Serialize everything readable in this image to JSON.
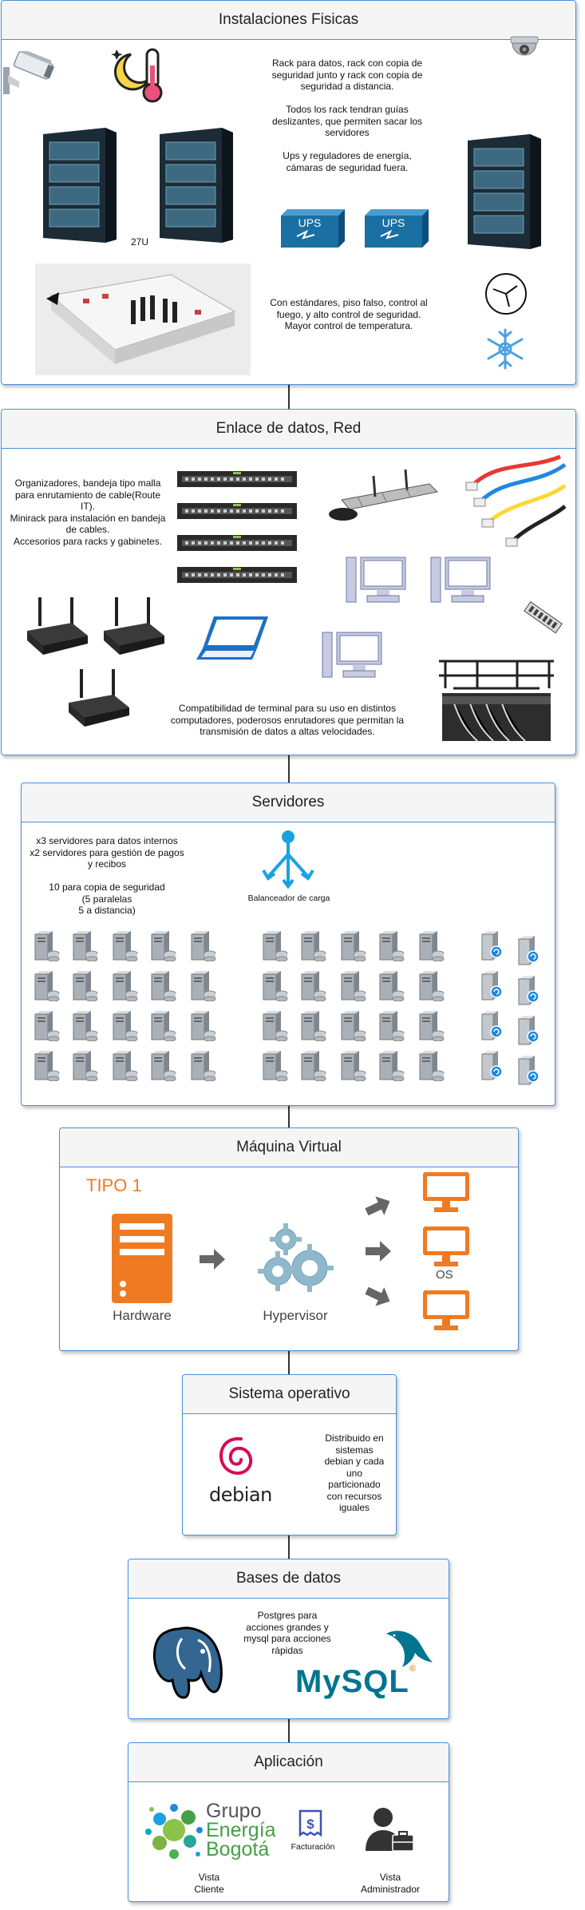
{
  "sections": {
    "instalaciones": {
      "title": "Instalaciones Fisicas",
      "text_racks": "Rack para datos, rack con copia de seguridad junto y rack con copia de seguridad a distancia.\n\nTodos los rack tendran guías deslizantes, que permiten sacar los servidores\n\nUps y reguladores de energía, cámaras de seguridad fuera.",
      "rack_label": "27U",
      "ups_label": "UPS",
      "text_control": "Con estándares, piso falso, control al fuego, y alto control de seguridad.\nMayor control de temperatura."
    },
    "enlace": {
      "title": "Enlace de datos, Red",
      "text_org": "Organizadores, bandeja tipo malla para enrutamiento de cable(Route IT).\nMinirack para instalación en bandeja de cables.\nAccesorios para racks y gabinetes.",
      "text_compat": "Compatibilidad de terminal para su uso en distintos computadores, poderosos enrutadores que permitan la transmisión de datos a altas velocidades."
    },
    "servidores": {
      "title": "Servidores",
      "text": "x3 servidores para datos internos\nx2 servidores para gestión de pagos y recibos\n\n10 para copia de seguridad\n(5 paralelas\n5 a distancia)",
      "balancer_label": "Balanceador de carga"
    },
    "maquina": {
      "title": "Máquina Virtual",
      "tipo": "TIPO 1",
      "hardware": "Hardware",
      "hypervisor": "Hypervisor",
      "os": "OS"
    },
    "sistema": {
      "title": "Sistema operativo",
      "logo_text": "debian",
      "text": "Distribuido en sistemas debian y cada uno particionado con recursos iguales"
    },
    "bases": {
      "title": "Bases de datos",
      "text": "Postgres para acciones grandes y mysql para acciones rápidas",
      "mysql_logo": "MySQL"
    },
    "aplicacion": {
      "title": "Aplicación",
      "logo_line1": "Grupo",
      "logo_line2": "Energía",
      "logo_line3": "Bogotá",
      "facturacion": "Facturación",
      "vista_cliente": "Vista\nCliente",
      "vista_admin": "Vista\nAdministrador"
    }
  },
  "colors": {
    "border": "#4a90d9",
    "header_bg": "#f5f5f5",
    "ups": "#1a6fa3",
    "orange": "#f07a22",
    "cyan": "#1ba1e2"
  }
}
